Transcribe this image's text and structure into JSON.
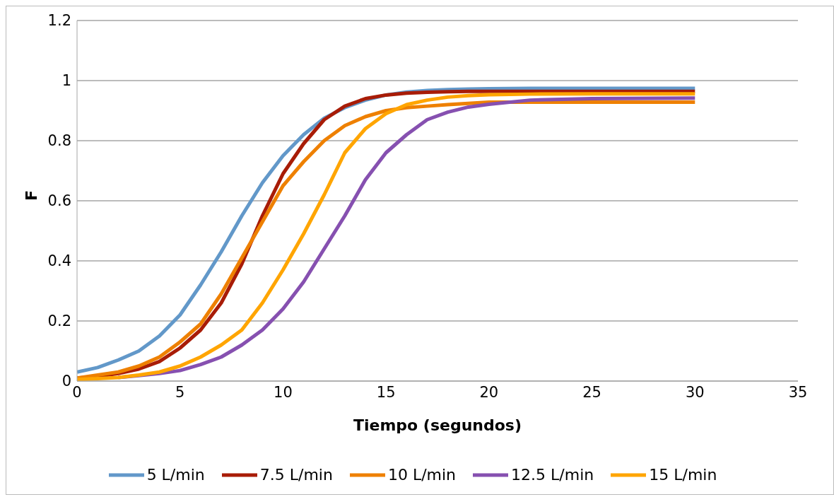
{
  "chart_data": {
    "type": "line",
    "xlabel": "Tiempo (segundos)",
    "ylabel": "F",
    "x": [
      0,
      1,
      2,
      3,
      4,
      5,
      6,
      7,
      8,
      9,
      10,
      11,
      12,
      13,
      14,
      15,
      16,
      17,
      18,
      19,
      20,
      22,
      25,
      30
    ],
    "xlim": [
      0,
      35
    ],
    "xticks": [
      0,
      5,
      10,
      15,
      20,
      25,
      30,
      35
    ],
    "ylim": [
      0,
      1.2
    ],
    "yticks": [
      0,
      0.2,
      0.4,
      0.6,
      0.8,
      1,
      1.2
    ],
    "grid": "y",
    "legend": "bottom",
    "marker": "none",
    "line_style": "solid",
    "series": [
      {
        "name": "5 L/min",
        "color": "#6298c9",
        "values": [
          0.03,
          0.045,
          0.07,
          0.1,
          0.15,
          0.22,
          0.32,
          0.43,
          0.55,
          0.66,
          0.75,
          0.82,
          0.875,
          0.91,
          0.935,
          0.952,
          0.962,
          0.967,
          0.97,
          0.972,
          0.973,
          0.974,
          0.974,
          0.974
        ]
      },
      {
        "name": "7.5 L/min",
        "color": "#a81c07",
        "values": [
          0.01,
          0.015,
          0.025,
          0.04,
          0.065,
          0.11,
          0.17,
          0.26,
          0.39,
          0.55,
          0.69,
          0.79,
          0.87,
          0.915,
          0.94,
          0.952,
          0.958,
          0.961,
          0.963,
          0.964,
          0.964,
          0.964,
          0.964,
          0.964
        ]
      },
      {
        "name": "10 L/min",
        "color": "#ee8000",
        "values": [
          0.01,
          0.02,
          0.03,
          0.05,
          0.08,
          0.13,
          0.19,
          0.29,
          0.41,
          0.53,
          0.65,
          0.73,
          0.8,
          0.85,
          0.88,
          0.9,
          0.91,
          0.915,
          0.92,
          0.924,
          0.928,
          0.928,
          0.928,
          0.928
        ]
      },
      {
        "name": "12.5 L/min",
        "color": "#8650b0",
        "values": [
          null,
          null,
          0.012,
          0.018,
          0.025,
          0.035,
          0.055,
          0.08,
          0.12,
          0.17,
          0.24,
          0.33,
          0.44,
          0.55,
          0.67,
          0.76,
          0.82,
          0.87,
          0.895,
          0.912,
          0.921,
          0.935,
          0.94,
          0.942
        ]
      },
      {
        "name": "15 L/min",
        "color": "#ffa500",
        "values": [
          0.005,
          0.008,
          0.012,
          0.02,
          0.03,
          0.05,
          0.08,
          0.12,
          0.17,
          0.26,
          0.37,
          0.49,
          0.62,
          0.76,
          0.84,
          0.89,
          0.92,
          0.935,
          0.945,
          0.95,
          0.953,
          0.955,
          0.956,
          0.956
        ]
      }
    ]
  }
}
